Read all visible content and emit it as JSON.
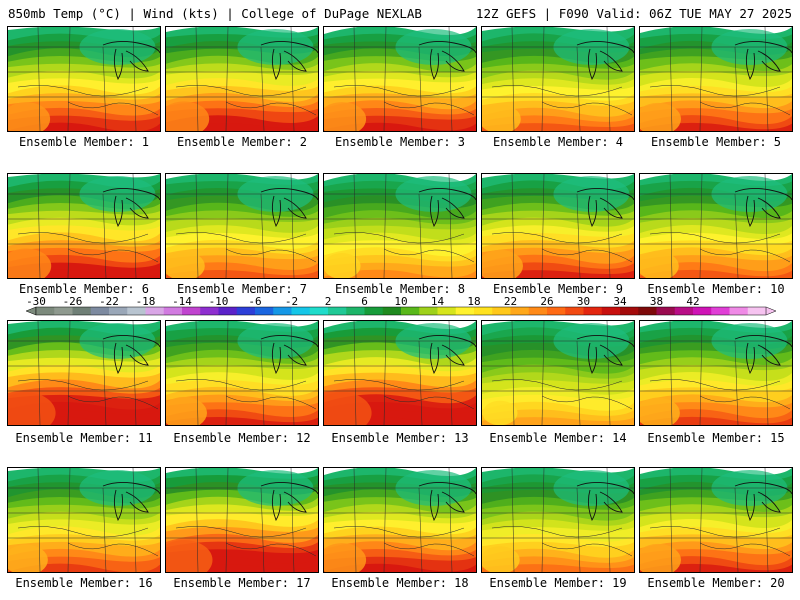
{
  "header": {
    "left": "850mb Temp (°C) | Wind (kts) | College of DuPage NEXLAB",
    "right": "12Z GEFS | F090 Valid: 06Z TUE MAY 27 2025"
  },
  "members": [
    {
      "label": "Ensemble Member: 1",
      "warmth": 0.55
    },
    {
      "label": "Ensemble Member: 2",
      "warmth": 0.6
    },
    {
      "label": "Ensemble Member: 3",
      "warmth": 0.55
    },
    {
      "label": "Ensemble Member: 4",
      "warmth": 0.4
    },
    {
      "label": "Ensemble Member: 5",
      "warmth": 0.5
    },
    {
      "label": "Ensemble Member: 6",
      "warmth": 0.6
    },
    {
      "label": "Ensemble Member: 7",
      "warmth": 0.4
    },
    {
      "label": "Ensemble Member: 8",
      "warmth": 0.3
    },
    {
      "label": "Ensemble Member: 9",
      "warmth": 0.5
    },
    {
      "label": "Ensemble Member: 10",
      "warmth": 0.4
    },
    {
      "label": "Ensemble Member: 11",
      "warmth": 0.8
    },
    {
      "label": "Ensemble Member: 12",
      "warmth": 0.5
    },
    {
      "label": "Ensemble Member: 13",
      "warmth": 0.8
    },
    {
      "label": "Ensemble Member: 14",
      "warmth": 0.25
    },
    {
      "label": "Ensemble Member: 15",
      "warmth": 0.45
    },
    {
      "label": "Ensemble Member: 16",
      "warmth": 0.45
    },
    {
      "label": "Ensemble Member: 17",
      "warmth": 0.75
    },
    {
      "label": "Ensemble Member: 18",
      "warmth": 0.55
    },
    {
      "label": "Ensemble Member: 19",
      "warmth": 0.35
    },
    {
      "label": "Ensemble Member: 20",
      "warmth": 0.5
    }
  ],
  "colorbar": {
    "ticks": [
      "-30",
      "-26",
      "-22",
      "-18",
      "-14",
      "-10",
      "-6",
      "-2",
      "2",
      "6",
      "10",
      "14",
      "18",
      "22",
      "26",
      "30",
      "34",
      "38",
      "42"
    ],
    "colors": [
      "#7c8a7c",
      "#8f9a8f",
      "#6f7f76",
      "#7d8aa0",
      "#9aa7b8",
      "#b8c4d0",
      "#d9a6e6",
      "#d17be0",
      "#c044cf",
      "#8e2fcf",
      "#5b22c9",
      "#2d3fd8",
      "#1a66e0",
      "#1597e6",
      "#15c6e8",
      "#1fdccb",
      "#20c996",
      "#1db569",
      "#179c3a",
      "#1f8a1f",
      "#59b81a",
      "#9ed11a",
      "#d6e51c",
      "#fff22e",
      "#ffe21e",
      "#ffc81a",
      "#ffa81a",
      "#ff8a18",
      "#ff6a14",
      "#f24a12",
      "#e3260f",
      "#c8100e",
      "#a40b0b",
      "#7e0a0a",
      "#9a0b4f",
      "#b80e86",
      "#cf14b6",
      "#e03fd6",
      "#ef8ae6",
      "#f6c3f0"
    ]
  }
}
